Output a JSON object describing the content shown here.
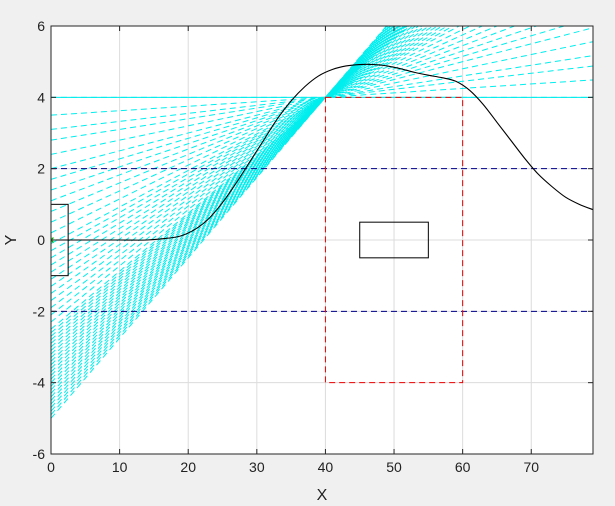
{
  "figure": {
    "background": "#f0f0f0",
    "axes_background": "#ffffff"
  },
  "chart_data": {
    "type": "line",
    "xlabel": "X",
    "ylabel": "Y",
    "xlim": [
      0,
      79
    ],
    "ylim": [
      -6,
      6
    ],
    "xticks": [
      0,
      10,
      20,
      30,
      40,
      50,
      60,
      70
    ],
    "yticks": [
      -6,
      -4,
      -2,
      0,
      2,
      4,
      6
    ],
    "xtick_labels": [
      "0",
      "10",
      "20",
      "30",
      "40",
      "50",
      "60",
      "70"
    ],
    "ytick_labels": [
      "-6",
      "-4",
      "-2",
      "0",
      "2",
      "4",
      "6"
    ],
    "grid": true,
    "colors": {
      "trajectory": "#000000",
      "candidates": "#00eeee",
      "lane_boundaries": "#00008b",
      "target_region": "#ee0000",
      "obstacle": "#000000",
      "start_box": "#000000",
      "start_marker": "#00aa00"
    },
    "candidate_fan": {
      "style": "dashed",
      "pivot": [
        40,
        4
      ],
      "left_y_values": [
        -5.0,
        -4.9,
        -4.8,
        -4.7,
        -4.6,
        -4.5,
        -4.4,
        -4.3,
        -4.2,
        -4.1,
        -4.0,
        -3.9,
        -3.8,
        -3.7,
        -3.6,
        -3.5,
        -3.4,
        -3.3,
        -3.2,
        -3.1,
        -3.0,
        -2.9,
        -2.8,
        -2.7,
        -2.6,
        -2.5,
        -2.3,
        -2.1,
        -1.9,
        -1.7,
        -1.5,
        -1.3,
        -1.1,
        -0.9,
        -0.7,
        -0.5,
        -0.3,
        -0.1,
        0.2,
        0.5,
        0.8,
        1.1,
        1.4,
        1.7,
        2.0,
        2.4,
        2.8,
        3.1,
        3.5,
        4.0
      ]
    },
    "series": [
      {
        "style": "solid",
        "x": [
          0,
          5,
          10,
          14,
          17,
          19,
          21,
          23,
          25,
          27,
          29,
          31,
          33,
          35,
          37,
          39,
          41,
          43,
          45,
          47,
          49,
          51,
          53,
          55,
          57,
          59,
          61,
          63,
          65,
          67,
          69,
          71,
          73,
          75,
          77,
          79
        ],
        "y": [
          0.0,
          0.0,
          0.0,
          0.0,
          0.05,
          0.12,
          0.3,
          0.6,
          1.05,
          1.6,
          2.2,
          2.8,
          3.4,
          3.9,
          4.3,
          4.6,
          4.78,
          4.88,
          4.92,
          4.92,
          4.88,
          4.8,
          4.7,
          4.62,
          4.55,
          4.45,
          4.2,
          3.8,
          3.3,
          2.8,
          2.3,
          1.85,
          1.5,
          1.2,
          1.0,
          0.85
        ]
      }
    ],
    "horizontal_lines": [
      {
        "y": 2,
        "style": "dashed",
        "role": "lane_boundaries"
      },
      {
        "y": -2,
        "style": "dashed",
        "role": "lane_boundaries"
      },
      {
        "y": 4,
        "style": "solid",
        "role": "candidates"
      },
      {
        "y": -6,
        "style": "dashed",
        "role": "candidates"
      }
    ],
    "rectangles": [
      {
        "x0": 40,
        "x1": 60,
        "y0": -4,
        "y1": 4,
        "style": "dashed",
        "role": "target_region"
      },
      {
        "x0": 45,
        "x1": 55,
        "y0": -0.5,
        "y1": 0.5,
        "style": "solid",
        "role": "obstacle"
      },
      {
        "x0": 0,
        "x1": 2.5,
        "y0": -1,
        "y1": 1,
        "style": "solid",
        "role": "start_box"
      }
    ],
    "markers": [
      {
        "x": 0,
        "y": 0,
        "symbol": "star",
        "role": "start_marker"
      }
    ]
  }
}
